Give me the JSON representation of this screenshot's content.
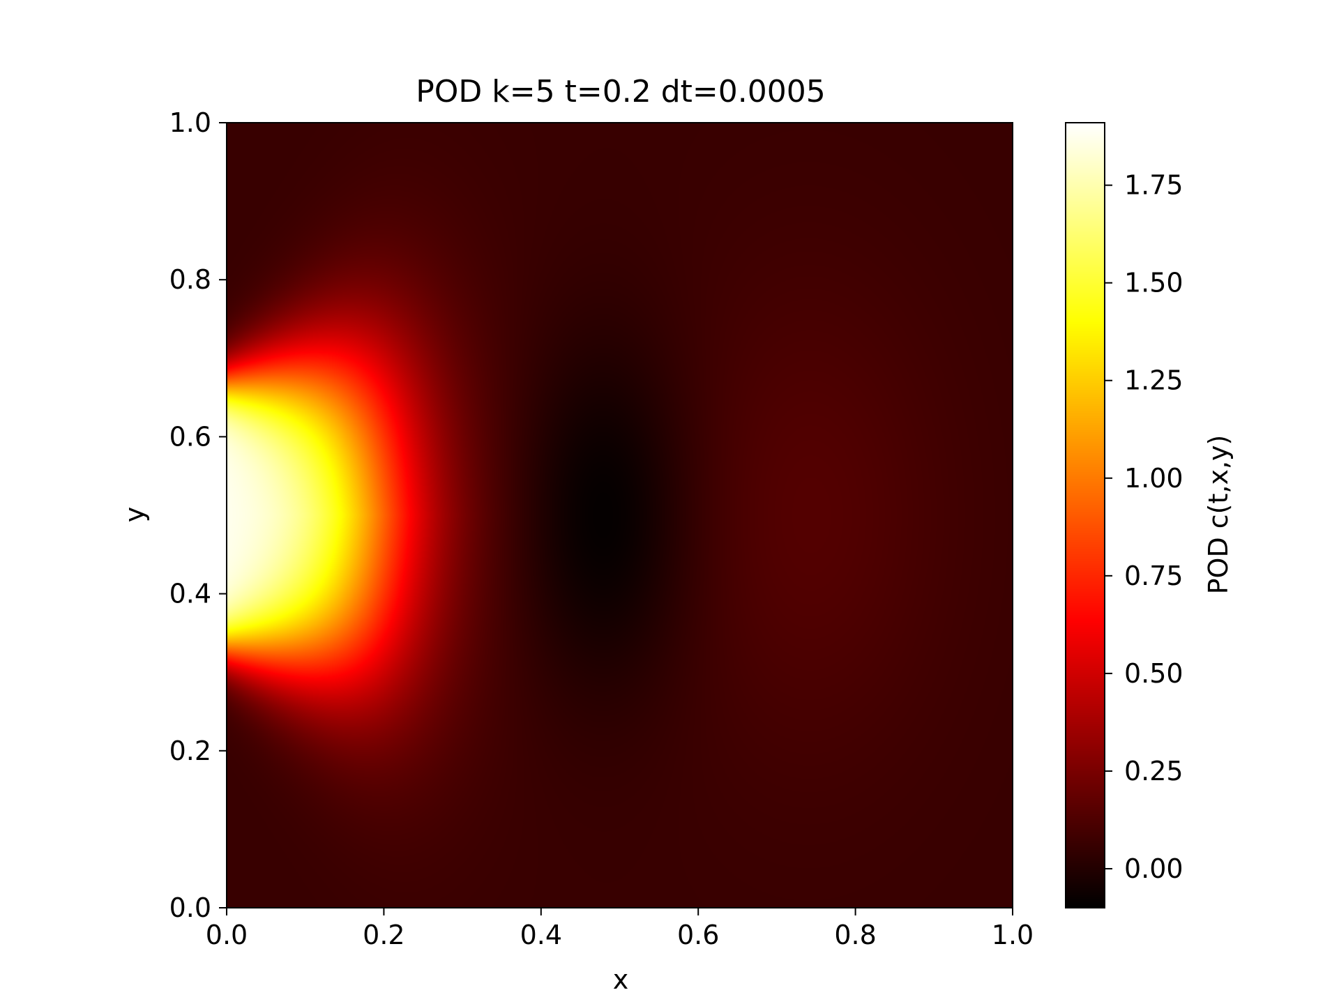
{
  "chart_data": {
    "type": "heatmap",
    "title": "POD k=5 t=0.2 dt=0.0005",
    "xlabel": "x",
    "ylabel": "y",
    "xlim": [
      0.0,
      1.0
    ],
    "ylim": [
      0.0,
      1.0
    ],
    "x_ticks": [
      "0.0",
      "0.2",
      "0.4",
      "0.6",
      "0.8",
      "1.0"
    ],
    "y_ticks": [
      "0.0",
      "0.2",
      "0.4",
      "0.6",
      "0.8",
      "1.0"
    ],
    "colormap": "hot",
    "colorbar": {
      "label": "POD c(t,x,y)",
      "vmin": -0.1,
      "vmax": 1.91,
      "ticks": [
        "0.00",
        "0.25",
        "0.50",
        "0.75",
        "1.00",
        "1.25",
        "1.50",
        "1.75"
      ]
    },
    "field_features": {
      "inflow_boundary": {
        "x": 0.0,
        "y_range": [
          0.33,
          0.67
        ],
        "value": 1.91
      },
      "plume": {
        "x_extent": 0.3,
        "y_center": 0.5
      },
      "undershoot_min": {
        "x": 0.48,
        "y": 0.5,
        "value": -0.1
      },
      "background": 0.06,
      "secondary_peak": {
        "x": 0.74,
        "y": 0.5,
        "value": 0.14
      }
    },
    "grid": false,
    "legend": "colorbar-right"
  }
}
